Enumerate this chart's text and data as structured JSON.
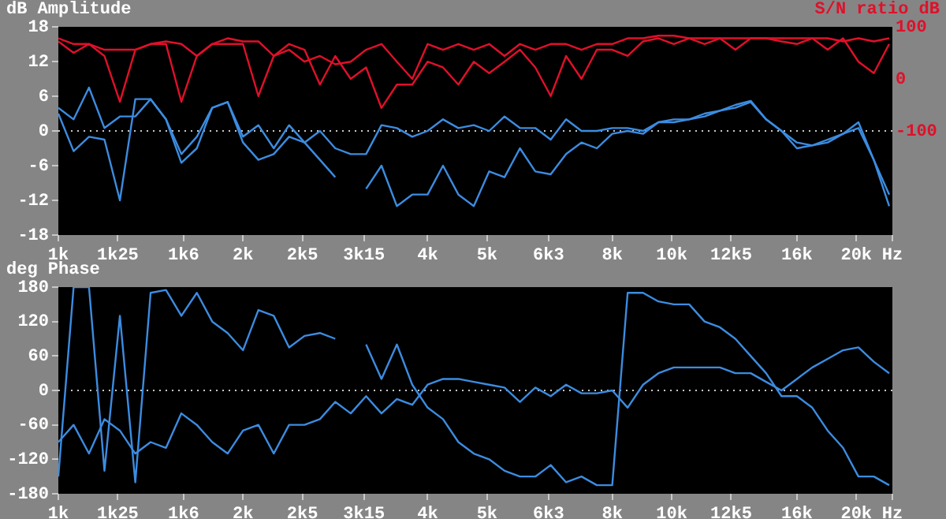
{
  "chart_data": [
    {
      "type": "line",
      "ylabel": "dB Amplitude",
      "y2label": "S/N ratio dB",
      "log": "x",
      "marker": "none",
      "x": [
        1000,
        1059,
        1122,
        1189,
        1260,
        1335,
        1414,
        1498,
        1587,
        1682,
        1782,
        1888,
        2000,
        2119,
        2245,
        2378,
        2520,
        2670,
        2828,
        2997,
        3175,
        3364,
        3564,
        3776,
        4000,
        4238,
        4490,
        4757,
        5040,
        5339,
        5657,
        5993,
        6350,
        6727,
        7127,
        7551,
        8000,
        8476,
        8980,
        9514,
        10079,
        10679,
        11314,
        11986,
        12699,
        13454,
        14254,
        15102,
        16000,
        16951,
        17959,
        19027,
        20159,
        21357,
        22627
      ],
      "xlim": [
        1000,
        22900
      ],
      "xticks": [
        {
          "value": 1000,
          "label": "1k"
        },
        {
          "value": 1250,
          "label": "1k25"
        },
        {
          "value": 1600,
          "label": "1k6"
        },
        {
          "value": 2000,
          "label": "2k"
        },
        {
          "value": 2500,
          "label": "2k5"
        },
        {
          "value": 3150,
          "label": "3k15"
        },
        {
          "value": 4000,
          "label": "4k"
        },
        {
          "value": 5000,
          "label": "5k"
        },
        {
          "value": 6300,
          "label": "6k3"
        },
        {
          "value": 8000,
          "label": "8k"
        },
        {
          "value": 10000,
          "label": "10k"
        },
        {
          "value": 12500,
          "label": "12k5"
        },
        {
          "value": 16000,
          "label": "16k"
        },
        {
          "value": 20000,
          "label": "20k"
        },
        {
          "value": 22900,
          "label": "Hz"
        }
      ],
      "ylim": [
        -18,
        18
      ],
      "yticks": [
        -18,
        -12,
        -6,
        0,
        6,
        12,
        18
      ],
      "y2lim": [
        -300,
        100
      ],
      "y2ticks": [
        100,
        0,
        -100
      ],
      "ref_lines": [
        {
          "axis": "y",
          "value": 0,
          "color": "#c8c8c8",
          "line_style": "dotted"
        }
      ],
      "series": [
        {
          "color": "#e0102a",
          "axis": "y2",
          "values": [
            78,
            67,
            67,
            56,
            56,
            56,
            67,
            72,
            67,
            44,
            67,
            78,
            72,
            72,
            44,
            56,
            33,
            44,
            28,
            33,
            56,
            67,
            33,
            0,
            67,
            56,
            67,
            56,
            67,
            44,
            67,
            56,
            67,
            67,
            56,
            67,
            67,
            78,
            78,
            83,
            83,
            78,
            78,
            78,
            78,
            78,
            78,
            78,
            78,
            78,
            78,
            72,
            78,
            72,
            78
          ]
        },
        {
          "color": "#e0102a",
          "axis": "y2",
          "values": [
            72,
            50,
            67,
            44,
            -44,
            56,
            67,
            67,
            -44,
            44,
            67,
            67,
            67,
            -33,
            44,
            67,
            56,
            -11,
            44,
            0,
            22,
            -56,
            -11,
            -11,
            33,
            22,
            -11,
            33,
            11,
            33,
            56,
            22,
            -33,
            44,
            0,
            56,
            56,
            44,
            72,
            78,
            67,
            78,
            67,
            78,
            56,
            78,
            78,
            72,
            67,
            78,
            56,
            78,
            33,
            11,
            67
          ]
        },
        {
          "color": "#3c8ce0",
          "values": [
            4,
            2,
            7.5,
            0.5,
            2.5,
            2.5,
            5.5,
            2,
            -4,
            -1,
            4,
            5,
            -1,
            1,
            -3,
            1,
            -2,
            0,
            -3,
            -4,
            -4,
            1,
            0.5,
            -1,
            0,
            2,
            0.5,
            1,
            0,
            2.5,
            0.5,
            0.5,
            -1.5,
            2,
            0,
            0,
            0.5,
            0.5,
            0,
            1.5,
            1.5,
            2,
            2.5,
            3.5,
            4.5,
            5.2,
            2,
            0,
            -2,
            -2.5,
            -1.5,
            -0.5,
            1.5,
            -5,
            -11
          ]
        },
        {
          "color": "#3c8ce0",
          "values": [
            3,
            -3.5,
            -1,
            -1.5,
            -12,
            5.5,
            5.5,
            2,
            -5.5,
            -3,
            4,
            5,
            -2,
            -5,
            -4,
            -1,
            -2,
            -5,
            -8,
            null,
            -10,
            -6,
            -13,
            -11,
            -11,
            -6,
            -11,
            -13,
            -7,
            -8,
            -3,
            -7,
            -7.5,
            -4,
            -2,
            -3,
            -0.5,
            0,
            -0.5,
            1.5,
            2,
            2,
            3,
            3.5,
            4,
            5,
            2,
            0,
            -3,
            -2.5,
            -2,
            -0.5,
            0.5,
            -5,
            -13
          ]
        }
      ]
    },
    {
      "type": "line",
      "ylabel": "deg Phase",
      "log": "x",
      "marker": "none",
      "x": [
        1000,
        1059,
        1122,
        1189,
        1260,
        1335,
        1414,
        1498,
        1587,
        1682,
        1782,
        1888,
        2000,
        2119,
        2245,
        2378,
        2520,
        2670,
        2828,
        2997,
        3175,
        3364,
        3564,
        3776,
        4000,
        4238,
        4490,
        4757,
        5040,
        5339,
        5657,
        5993,
        6350,
        6727,
        7127,
        7551,
        8000,
        8476,
        8980,
        9514,
        10079,
        10679,
        11314,
        11986,
        12699,
        13454,
        14254,
        15102,
        16000,
        16951,
        17959,
        19027,
        20159,
        21357,
        22627
      ],
      "xlim": [
        1000,
        22900
      ],
      "xticks": [
        {
          "value": 1000,
          "label": "1k"
        },
        {
          "value": 1250,
          "label": "1k25"
        },
        {
          "value": 1600,
          "label": "1k6"
        },
        {
          "value": 2000,
          "label": "2k"
        },
        {
          "value": 2500,
          "label": "2k5"
        },
        {
          "value": 3150,
          "label": "3k15"
        },
        {
          "value": 4000,
          "label": "4k"
        },
        {
          "value": 5000,
          "label": "5k"
        },
        {
          "value": 6300,
          "label": "6k3"
        },
        {
          "value": 8000,
          "label": "8k"
        },
        {
          "value": 10000,
          "label": "10k"
        },
        {
          "value": 12500,
          "label": "12k5"
        },
        {
          "value": 16000,
          "label": "16k"
        },
        {
          "value": 20000,
          "label": "20k"
        },
        {
          "value": 22900,
          "label": "Hz"
        }
      ],
      "ylim": [
        -180,
        180
      ],
      "yticks": [
        -180,
        -120,
        -60,
        0,
        60,
        120,
        180
      ],
      "ref_lines": [
        {
          "axis": "y",
          "value": 0,
          "color": "#c8c8c8",
          "line_style": "dotted"
        }
      ],
      "series": [
        {
          "color": "#3c8ce0",
          "values": [
            -150,
            180,
            180,
            -140,
            130,
            -160,
            170,
            175,
            130,
            170,
            120,
            100,
            70,
            140,
            130,
            75,
            95,
            100,
            90,
            null,
            80,
            20,
            80,
            10,
            -30,
            -50,
            -90,
            -110,
            -120,
            -140,
            -150,
            -150,
            -130,
            -160,
            -150,
            -165,
            -165,
            170,
            170,
            155,
            150,
            150,
            120,
            110,
            90,
            60,
            30,
            -10,
            -10,
            -30,
            -70,
            -100,
            -150,
            -150,
            -165
          ]
        },
        {
          "color": "#3c8ce0",
          "values": [
            -90,
            -60,
            -110,
            -50,
            -70,
            -110,
            -90,
            -100,
            -40,
            -60,
            -90,
            -110,
            -70,
            -60,
            -110,
            -60,
            -60,
            -50,
            -20,
            -40,
            -10,
            -40,
            -15,
            -25,
            10,
            20,
            20,
            15,
            10,
            5,
            -20,
            5,
            -10,
            10,
            -5,
            -5,
            0,
            -30,
            10,
            30,
            40,
            40,
            40,
            40,
            30,
            30,
            15,
            0,
            20,
            40,
            55,
            70,
            75,
            50,
            30
          ]
        }
      ]
    }
  ]
}
